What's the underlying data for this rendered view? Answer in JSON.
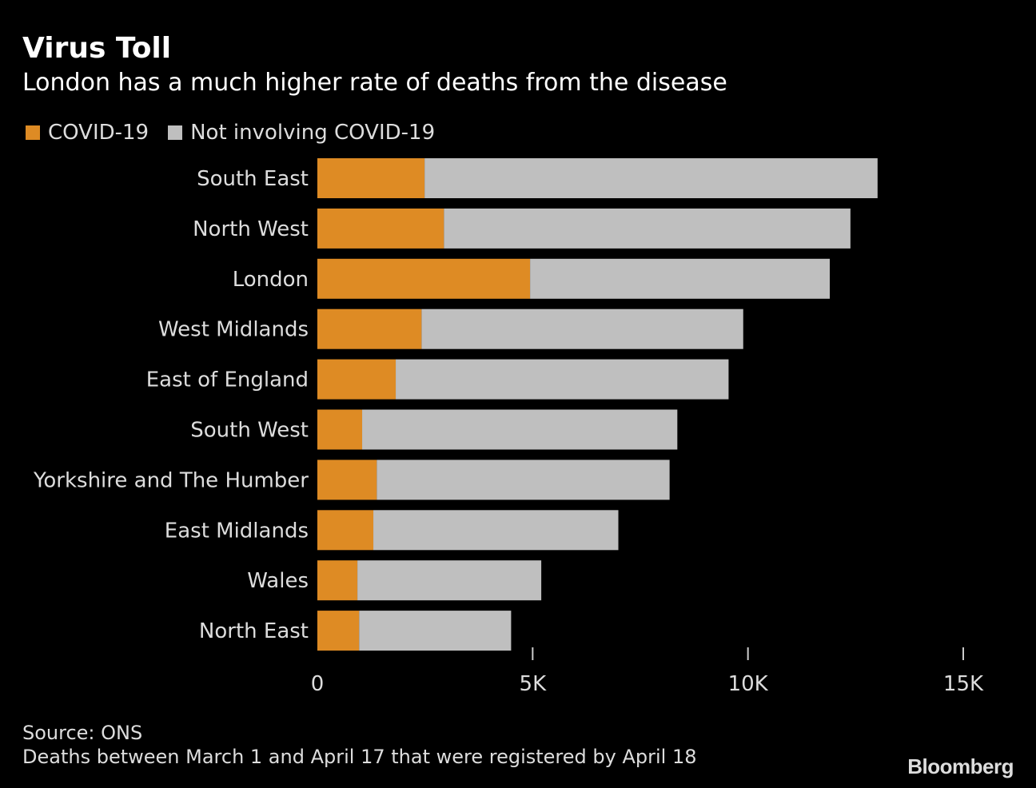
{
  "chart_data": {
    "type": "bar",
    "orientation": "horizontal",
    "stacked": true,
    "title": "Virus Toll",
    "subtitle": "London has a much higher rate of deaths from the disease",
    "categories": [
      "South East",
      "North West",
      "London",
      "West Midlands",
      "East of England",
      "South West",
      "Yorkshire and The Humber",
      "East Midlands",
      "Wales",
      "North East"
    ],
    "series": [
      {
        "name": "COVID-19",
        "color": "#de8b24",
        "values": [
          2490,
          2940,
          4940,
          2420,
          1820,
          1040,
          1380,
          1300,
          930,
          970
        ]
      },
      {
        "name": "Not involving COVID-19",
        "color": "#bfbfbf",
        "values": [
          10520,
          9440,
          6960,
          7470,
          7730,
          7320,
          6800,
          5690,
          4270,
          3530
        ]
      }
    ],
    "xlim": [
      0,
      15000
    ],
    "xticks": [
      0,
      5000,
      10000,
      15000
    ],
    "xtick_labels": [
      "0",
      "5K",
      "10K",
      "15K"
    ],
    "legend": "top-left",
    "grid": false
  },
  "footer": {
    "source": "Source: ONS",
    "note": "Deaths between March 1 and April 17 that were registered by April 18",
    "logo": "Bloomberg"
  }
}
